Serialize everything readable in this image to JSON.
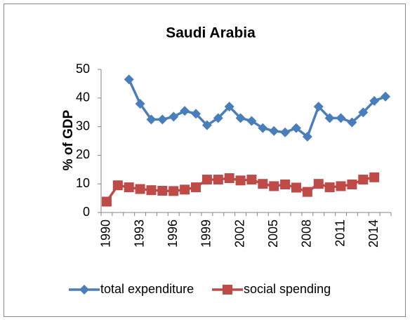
{
  "chart_data": {
    "type": "line",
    "title": "Saudi Arabia",
    "y_label": "% of GDP",
    "categories": [
      "1990",
      null,
      null,
      "1993",
      null,
      null,
      "1996",
      null,
      null,
      "1999",
      null,
      null,
      "2002",
      null,
      null,
      "2005",
      null,
      null,
      "2008",
      null,
      null,
      "2011",
      null,
      null,
      "2014",
      null
    ],
    "series": [
      {
        "name": "total expenditure",
        "color": "#4a7ebb",
        "marker": "diamond",
        "values": [
          null,
          null,
          46.5,
          38,
          32.5,
          32.5,
          33.5,
          35.5,
          34.5,
          30.5,
          33,
          37,
          33,
          32,
          29.5,
          28.5,
          28,
          29.5,
          26.5,
          37,
          33,
          33,
          31.5,
          35,
          39,
          40.5
        ]
      },
      {
        "name": "social spending",
        "color": "#be4b48",
        "marker": "square",
        "values": [
          3.8,
          9.5,
          8.8,
          8.2,
          7.8,
          7.6,
          7.5,
          8,
          8.8,
          11.5,
          11.5,
          12,
          11.2,
          11.5,
          10,
          9.2,
          9.8,
          8.7,
          7.2,
          10,
          8.8,
          9.2,
          9.8,
          11.5,
          12.3,
          null
        ]
      }
    ],
    "ylim": [
      0,
      50
    ],
    "yticks": [
      0,
      10,
      20,
      30,
      40,
      50
    ],
    "grid": false,
    "legend": "bottom"
  }
}
